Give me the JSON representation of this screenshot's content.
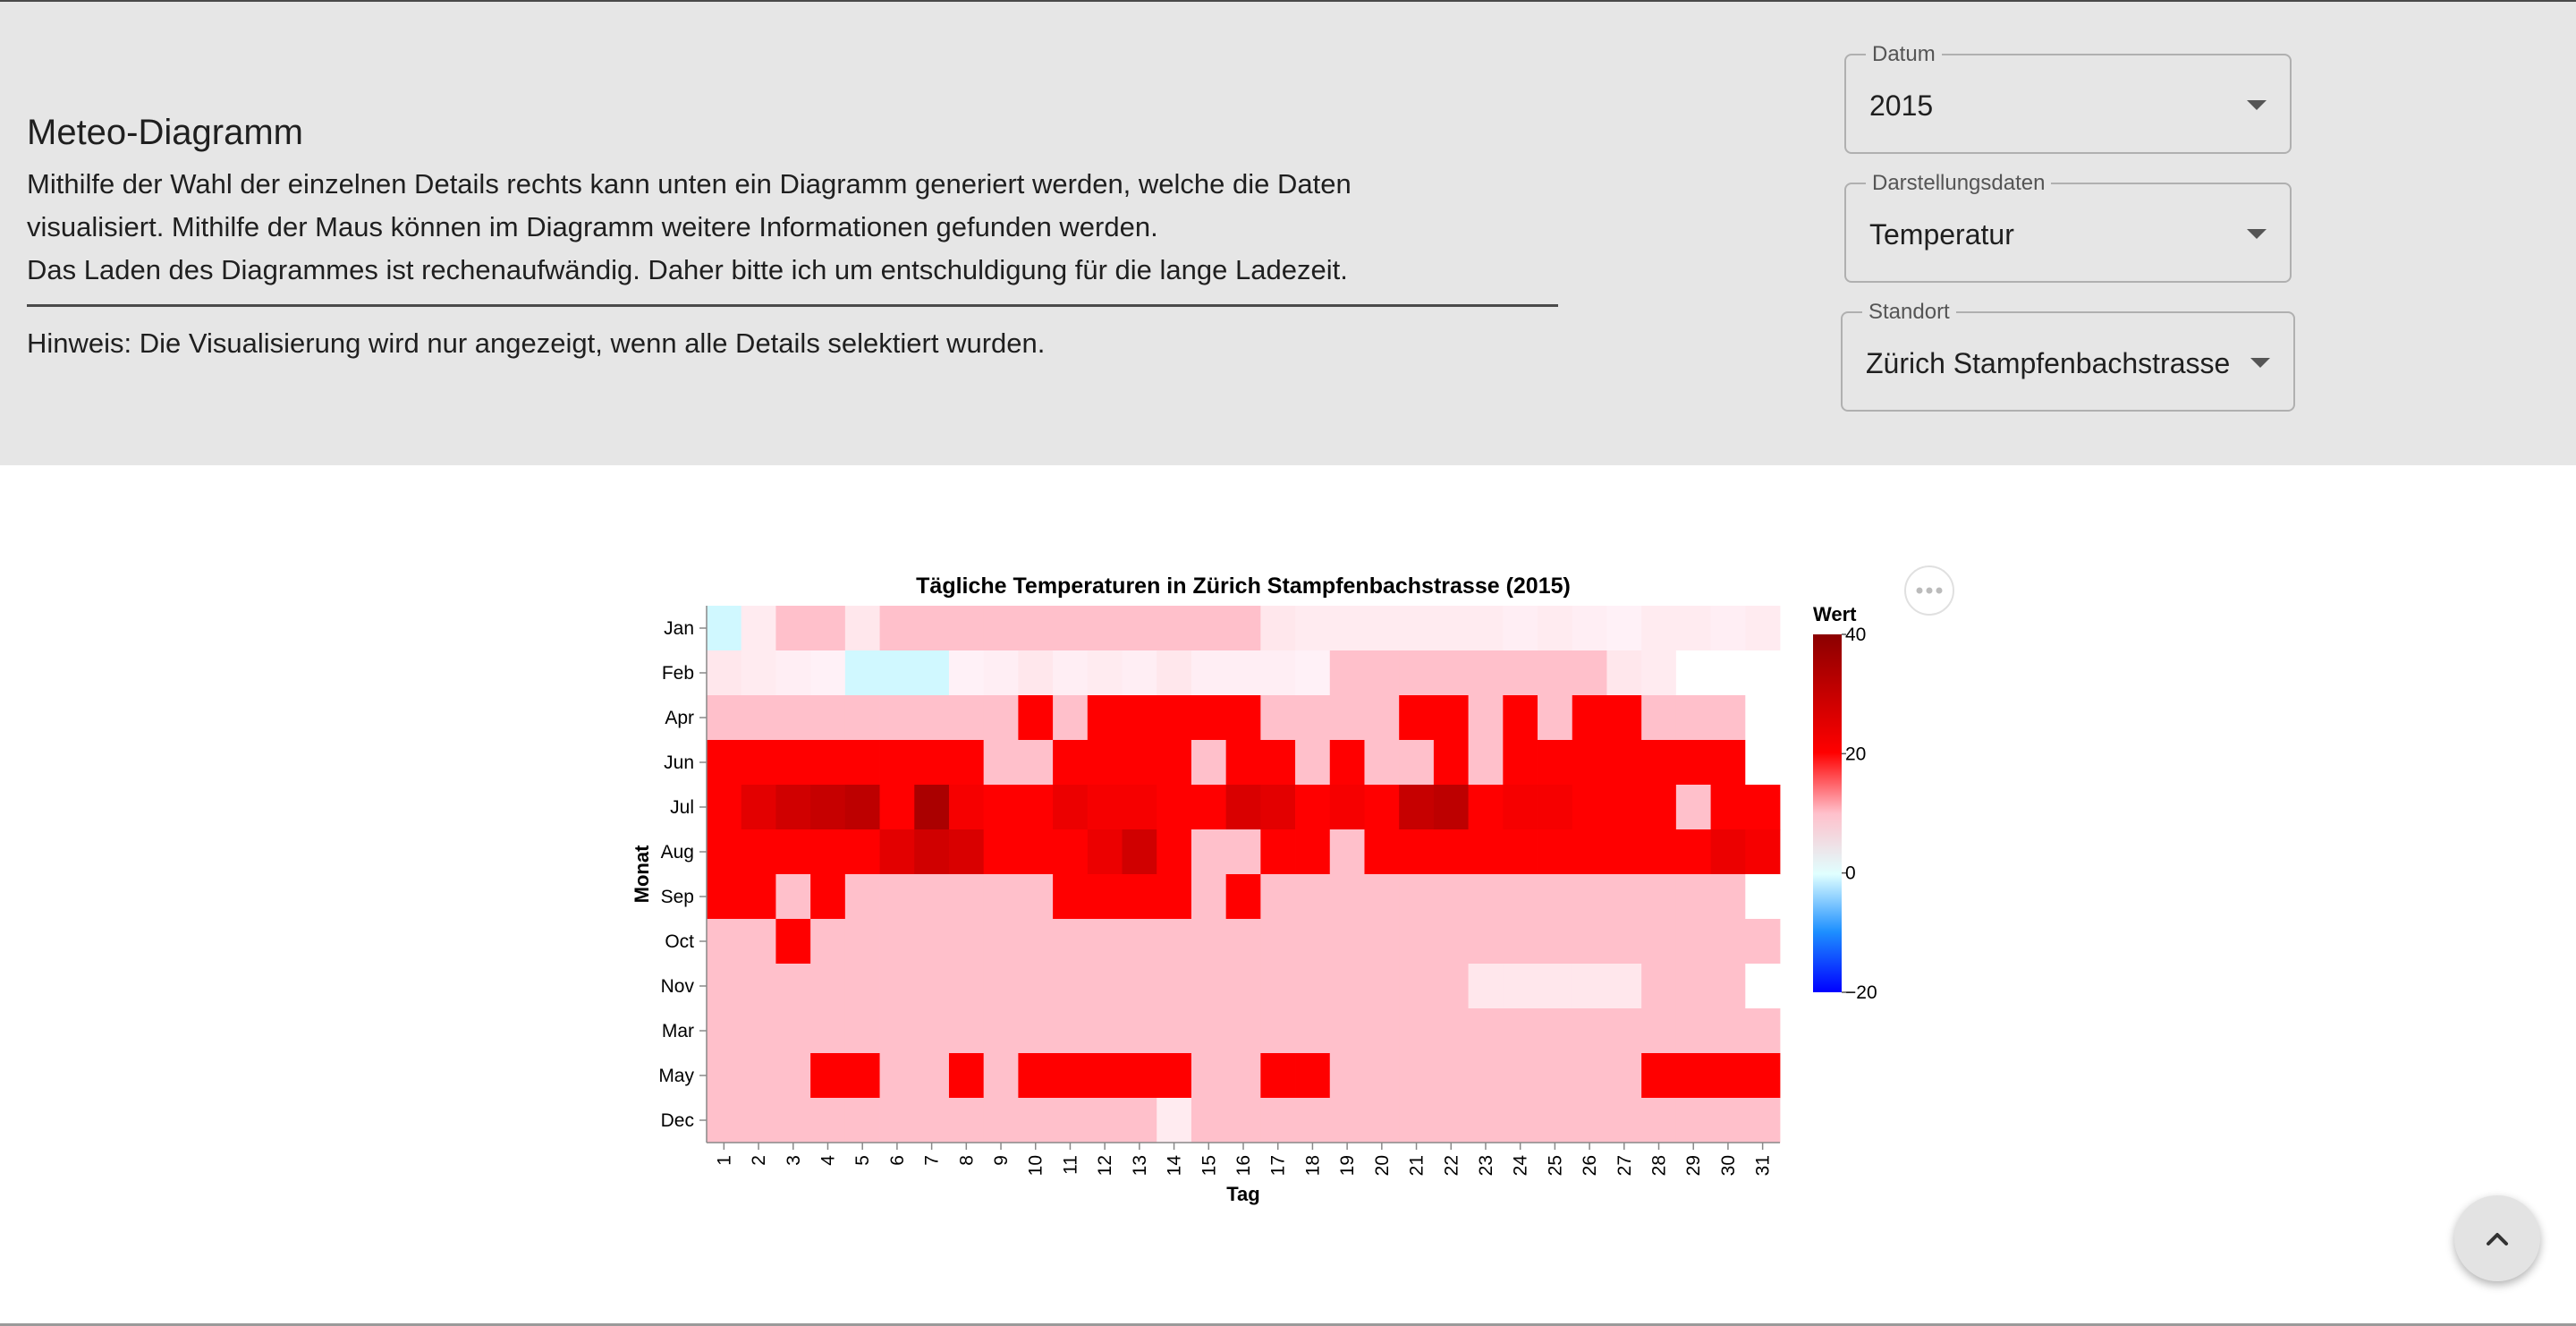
{
  "intro": {
    "title": "Meteo-Diagramm",
    "line1": "Mithilfe der Wahl der einzelnen Details rechts kann unten ein Diagramm generiert werden, welche die Daten",
    "line2": "visualisiert. Mithilfe der Maus können im Diagramm weitere Informationen gefunden werden.",
    "line3": "Das Laden des Diagrammes ist rechenaufwändig. Daher bitte ich um entschuldigung für die lange Ladezeit.",
    "hint": "Hinweis: Die Visualisierung wird nur angezeigt, wenn alle Details selektiert wurden."
  },
  "controls": {
    "datum": {
      "label": "Datum",
      "value": "2015"
    },
    "darstellung": {
      "label": "Darstellungsdaten",
      "value": "Temperatur"
    },
    "standort": {
      "label": "Standort",
      "value": "Zürich Stampfenbachstrasse"
    }
  },
  "icons": {
    "more_actions": "more-horizontal-icon",
    "scroll_top": "chevron-up-icon",
    "dropdown": "caret-down-icon"
  },
  "colors": {
    "header_bg": "#e6e6e6",
    "cell_cool": "#ffc0cb",
    "cell_hot": "#ff0000",
    "cell_very_hot": "#b20000",
    "cell_cold": "#d0f8ff",
    "gradient_stops": [
      "#0000ff",
      "#1e90ff",
      "#e0ffff",
      "#ffc0cb",
      "#ff0000",
      "#8b0000"
    ]
  },
  "chart_data": {
    "type": "heatmap",
    "title": "Tägliche Temperaturen in Zürich Stampfenbachstrasse (2015)",
    "xlabel": "Tag",
    "ylabel": "Monat",
    "x": [
      1,
      2,
      3,
      4,
      5,
      6,
      7,
      8,
      9,
      10,
      11,
      12,
      13,
      14,
      15,
      16,
      17,
      18,
      19,
      20,
      21,
      22,
      23,
      24,
      25,
      26,
      27,
      28,
      29,
      30,
      31
    ],
    "y": [
      "Jan",
      "Feb",
      "Apr",
      "Jun",
      "Jul",
      "Aug",
      "Sep",
      "Oct",
      "Nov",
      "Mar",
      "May",
      "Dec"
    ],
    "legend_title": "Wert",
    "legend_ticks": [
      40,
      20,
      0,
      -20
    ],
    "color_domain": [
      -20,
      40
    ],
    "legend_position": "right",
    "values": [
      [
        -2,
        3,
        6,
        6,
        4,
        5,
        5,
        6,
        6,
        6,
        6,
        5,
        6,
        6,
        6,
        5,
        4,
        3,
        3,
        3,
        3,
        3,
        3,
        2,
        3,
        2,
        1,
        3,
        3,
        2,
        3
      ],
      [
        4,
        3,
        2,
        1,
        -3,
        -3,
        -3,
        1,
        2,
        4,
        2,
        3,
        2,
        4,
        2,
        2,
        2,
        1,
        5,
        7,
        5,
        5,
        5,
        6,
        6,
        6,
        4,
        3,
        null,
        null,
        null
      ],
      [
        8,
        7,
        8,
        8,
        8,
        9,
        9,
        9,
        9,
        22,
        10,
        23,
        23,
        23,
        23,
        22,
        10,
        10,
        10,
        10,
        23,
        23,
        10,
        23,
        10,
        23,
        23,
        10,
        10,
        10,
        null
      ],
      [
        24,
        24,
        24,
        24,
        25,
        25,
        24,
        24,
        10,
        10,
        24,
        24,
        24,
        24,
        10,
        24,
        24,
        10,
        24,
        10,
        10,
        24,
        10,
        24,
        24,
        24,
        24,
        24,
        24,
        24,
        null
      ],
      [
        26,
        29,
        31,
        32,
        33,
        25,
        35,
        27,
        26,
        26,
        28,
        27,
        27,
        26,
        26,
        30,
        29,
        26,
        27,
        26,
        32,
        33,
        26,
        27,
        27,
        26,
        26,
        26,
        10,
        26,
        26
      ],
      [
        26,
        26,
        26,
        26,
        26,
        29,
        31,
        30,
        26,
        26,
        26,
        28,
        31,
        26,
        10,
        10,
        24,
        24,
        10,
        24,
        24,
        24,
        24,
        24,
        24,
        24,
        24,
        24,
        26,
        28,
        27
      ],
      [
        24,
        24,
        10,
        24,
        10,
        10,
        10,
        10,
        10,
        10,
        24,
        24,
        24,
        24,
        10,
        24,
        10,
        10,
        10,
        10,
        10,
        10,
        10,
        10,
        10,
        10,
        10,
        10,
        10,
        10,
        null
      ],
      [
        10,
        10,
        24,
        10,
        10,
        10,
        10,
        10,
        10,
        10,
        10,
        10,
        10,
        10,
        9,
        9,
        9,
        9,
        10,
        10,
        10,
        10,
        10,
        10,
        10,
        10,
        10,
        10,
        10,
        10,
        10
      ],
      [
        10,
        10,
        10,
        10,
        10,
        10,
        10,
        10,
        10,
        10,
        10,
        10,
        10,
        10,
        10,
        10,
        10,
        10,
        10,
        10,
        6,
        5,
        4,
        4,
        4,
        4,
        4,
        5,
        5,
        7,
        null
      ],
      [
        10,
        10,
        10,
        9,
        7,
        8,
        10,
        10,
        10,
        10,
        10,
        10,
        10,
        10,
        10,
        10,
        10,
        10,
        10,
        10,
        10,
        7,
        10,
        10,
        10,
        8,
        10,
        10,
        10,
        10,
        10
      ],
      [
        10,
        10,
        10,
        24,
        24,
        10,
        10,
        24,
        10,
        24,
        24,
        24,
        24,
        24,
        10,
        10,
        24,
        24,
        10,
        10,
        10,
        10,
        10,
        10,
        10,
        10,
        10,
        24,
        24,
        24,
        24
      ],
      [
        10,
        10,
        5,
        8,
        8,
        9,
        7,
        8,
        10,
        5,
        9,
        8,
        9,
        3,
        6,
        10,
        10,
        10,
        10,
        10,
        10,
        10,
        10,
        10,
        10,
        10,
        10,
        6,
        7,
        6,
        8
      ]
    ]
  }
}
